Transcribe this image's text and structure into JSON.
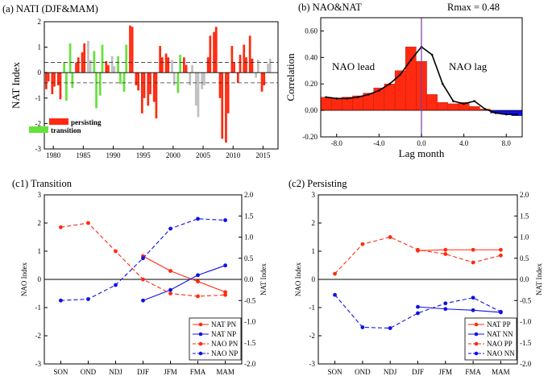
{
  "colors": {
    "red": "#ff2a10",
    "green": "#66e23a",
    "grey": "#c0c0c0",
    "blue": "#1010e6",
    "purple": "#7a3aa8",
    "black": "#000000"
  },
  "chart_data": [
    {
      "id": "a",
      "type": "bar",
      "title": "(a) NATI (DJF&MAM)",
      "ylabel": "NAT Index",
      "xlabel": "",
      "ylim": [
        -3,
        2
      ],
      "yticks": [
        "-3",
        "-2",
        "-1",
        "0",
        "1",
        "2"
      ],
      "xticks": [
        "1980",
        "1985",
        "1990",
        "1995",
        "2000",
        "2005",
        "2010",
        "2015"
      ],
      "threshold_lines": [
        0.4,
        -0.4
      ],
      "legend": [
        {
          "label": "persisting",
          "class": "p"
        },
        {
          "label": "transition",
          "class": "t"
        }
      ],
      "series": [
        {
          "year": 1979,
          "class": "p",
          "values": [
            -0.65,
            -0.35
          ]
        },
        {
          "year": 1980,
          "class": "p",
          "values": [
            -0.85,
            -0.55
          ]
        },
        {
          "year": 1981,
          "class": "p",
          "values": [
            -0.5,
            -1.05
          ]
        },
        {
          "year": 1982,
          "class": "t",
          "values": [
            0.4,
            -1.1
          ]
        },
        {
          "year": 1983,
          "class": "t",
          "values": [
            1.15,
            -0.6
          ]
        },
        {
          "year": 1984,
          "class": "p",
          "values": [
            0.4,
            0.6
          ]
        },
        {
          "year": 1985,
          "class": "p",
          "values": [
            0.8,
            1.15
          ]
        },
        {
          "year": 1986,
          "class": "g",
          "values": [
            1.25,
            0.5
          ]
        },
        {
          "year": 1987,
          "class": "t",
          "values": [
            0.85,
            -1.4
          ]
        },
        {
          "year": 1988,
          "class": "t",
          "values": [
            -0.9,
            1.1
          ]
        },
        {
          "year": 1989,
          "class": "p",
          "values": [
            0.45,
            0.3
          ]
        },
        {
          "year": 1990,
          "class": "g",
          "values": [
            0.65,
            0.25
          ]
        },
        {
          "year": 1991,
          "class": "t",
          "values": [
            0.65,
            -0.45
          ]
        },
        {
          "year": 1992,
          "class": "t",
          "values": [
            -0.75,
            1.1
          ]
        },
        {
          "year": 1993,
          "class": "p",
          "values": [
            1.85,
            1.8
          ]
        },
        {
          "year": 1994,
          "class": "p",
          "values": [
            -0.5,
            -0.7
          ]
        },
        {
          "year": 1995,
          "class": "p",
          "values": [
            -1.6,
            -1.0
          ]
        },
        {
          "year": 1996,
          "class": "p",
          "values": [
            -1.3,
            -0.85
          ]
        },
        {
          "year": 1997,
          "class": "p",
          "values": [
            -1.15,
            -1.8
          ]
        },
        {
          "year": 1998,
          "class": "p",
          "values": [
            1.05,
            0.6
          ]
        },
        {
          "year": 1999,
          "class": "p",
          "values": [
            0.75,
            0.6
          ]
        },
        {
          "year": 2000,
          "class": "g",
          "values": [
            0.5,
            -0.5
          ]
        },
        {
          "year": 2001,
          "class": "t",
          "values": [
            -0.8,
            0.7
          ]
        },
        {
          "year": 2002,
          "class": "p",
          "values": [
            0.6,
            0.3
          ]
        },
        {
          "year": 2003,
          "class": "g",
          "values": [
            -0.5,
            0.3
          ]
        },
        {
          "year": 2004,
          "class": "g",
          "values": [
            -1.3,
            -1.75
          ]
        },
        {
          "year": 2005,
          "class": "g",
          "values": [
            -0.65,
            -0.5
          ]
        },
        {
          "year": 2006,
          "class": "p",
          "values": [
            0.6,
            1.45
          ]
        },
        {
          "year": 2007,
          "class": "p",
          "values": [
            1.6,
            1.8
          ]
        },
        {
          "year": 2008,
          "class": "p",
          "values": [
            -1.0,
            -2.6
          ]
        },
        {
          "year": 2009,
          "class": "p",
          "values": [
            -2.75,
            -1.6
          ]
        },
        {
          "year": 2010,
          "class": "p",
          "values": [
            1.05,
            0.4
          ]
        },
        {
          "year": 2011,
          "class": "p",
          "values": [
            -0.4,
            0.7
          ]
        },
        {
          "year": 2012,
          "class": "p",
          "values": [
            1.1,
            0.6
          ]
        },
        {
          "year": 2013,
          "class": "p",
          "values": [
            1.45,
            0.55
          ]
        },
        {
          "year": 2014,
          "class": "g",
          "values": [
            -0.2,
            0.5
          ]
        },
        {
          "year": 2015,
          "class": "p",
          "values": [
            -0.75,
            -0.5
          ]
        },
        {
          "year": 2016,
          "class": "g",
          "values": [
            0.35,
            0.55
          ]
        }
      ]
    },
    {
      "id": "b",
      "type": "bar",
      "title": "(b) NAO&NAT",
      "annotation": "Rmax = 0.48",
      "ylabel": "Correlation",
      "xlabel": "Lag month",
      "ylim": [
        -0.2,
        0.7
      ],
      "xlim": [
        -9.5,
        9.5
      ],
      "yticks": [
        "-0.20",
        "0.00",
        "0.20",
        "0.40",
        "0.60"
      ],
      "xticks": [
        "-8.0",
        "-4.0",
        "0.0",
        "4.0",
        "8.0"
      ],
      "text_labels": [
        "NAO lead",
        "NAO lag"
      ],
      "lags": [
        -9,
        -8,
        -7,
        -6,
        -5,
        -4,
        -3,
        -2,
        -1,
        0,
        1,
        2,
        3,
        4,
        5,
        6,
        7,
        8,
        9
      ],
      "values": [
        0.1,
        0.09,
        0.1,
        0.11,
        0.13,
        0.17,
        0.2,
        0.3,
        0.48,
        0.37,
        0.12,
        0.06,
        0.05,
        0.06,
        0.03,
        0.01,
        -0.02,
        -0.03,
        -0.04
      ],
      "line": [
        0.1,
        0.09,
        0.09,
        0.1,
        0.12,
        0.15,
        0.2,
        0.27,
        0.38,
        0.48,
        0.42,
        0.2,
        0.07,
        0.05,
        0.07,
        0.01,
        -0.02,
        -0.03,
        -0.03
      ]
    },
    {
      "id": "c1",
      "type": "line",
      "title": "(c1) Transition",
      "ylabel": "NAO Index",
      "y2label": "NAT Index",
      "categories": [
        "SON",
        "OND",
        "NDJ",
        "DJF",
        "JFM",
        "FMA",
        "MAM"
      ],
      "ylim": [
        -3,
        3
      ],
      "y2lim": [
        -2,
        2
      ],
      "yticks": [
        "-3",
        "-2",
        "-1",
        "0",
        "1",
        "2",
        "3"
      ],
      "y2ticks": [
        "-2.0",
        "-1.5",
        "-1.0",
        "-0.5",
        "0.0",
        "0.5",
        "1.0",
        "1.5",
        "2.0"
      ],
      "series": [
        {
          "name": "NAT PN",
          "axis": "right",
          "style": "solid",
          "color": "red",
          "values": [
            null,
            null,
            null,
            0.55,
            0.2,
            -0.05,
            -0.3
          ]
        },
        {
          "name": "NAT NP",
          "axis": "right",
          "style": "solid",
          "color": "blue",
          "values": [
            null,
            null,
            null,
            -0.5,
            -0.25,
            0.1,
            0.33
          ]
        },
        {
          "name": "NAO PN",
          "axis": "left",
          "style": "dashed",
          "color": "red",
          "values": [
            1.85,
            2.0,
            1.0,
            0.0,
            -0.5,
            -0.6,
            -0.55
          ]
        },
        {
          "name": "NAO NP",
          "axis": "left",
          "style": "dashed",
          "color": "blue",
          "values": [
            -0.75,
            -0.7,
            -0.2,
            0.75,
            1.8,
            2.15,
            2.1
          ]
        }
      ]
    },
    {
      "id": "c2",
      "type": "line",
      "title": "(c2) Persisting",
      "ylabel": "NAO Index",
      "y2label": "NAT Index",
      "categories": [
        "SON",
        "OND",
        "NDJ",
        "DJF",
        "JFM",
        "FMA",
        "MAM"
      ],
      "ylim": [
        -3,
        3
      ],
      "y2lim": [
        -2,
        2
      ],
      "yticks": [
        "-3",
        "-2",
        "-1",
        "0",
        "1",
        "2",
        "3"
      ],
      "y2ticks": [
        "-2.0",
        "-1.5",
        "-1.0",
        "-0.5",
        "0.0",
        "0.5",
        "1.0",
        "1.5",
        "2.0"
      ],
      "series": [
        {
          "name": "NAT PP",
          "axis": "right",
          "style": "solid",
          "color": "red",
          "values": [
            null,
            null,
            null,
            0.68,
            0.7,
            0.7,
            0.7
          ]
        },
        {
          "name": "NAT NN",
          "axis": "right",
          "style": "solid",
          "color": "blue",
          "values": [
            null,
            null,
            null,
            -0.65,
            -0.7,
            -0.73,
            -0.78
          ]
        },
        {
          "name": "NAO PP",
          "axis": "left",
          "style": "dashed",
          "color": "red",
          "values": [
            0.2,
            1.25,
            1.5,
            1.05,
            0.9,
            0.6,
            0.85
          ]
        },
        {
          "name": "NAO NN",
          "axis": "left",
          "style": "dashed",
          "color": "blue",
          "values": [
            -0.55,
            -1.7,
            -1.73,
            -1.2,
            -0.85,
            -0.65,
            -1.15
          ]
        }
      ]
    }
  ]
}
